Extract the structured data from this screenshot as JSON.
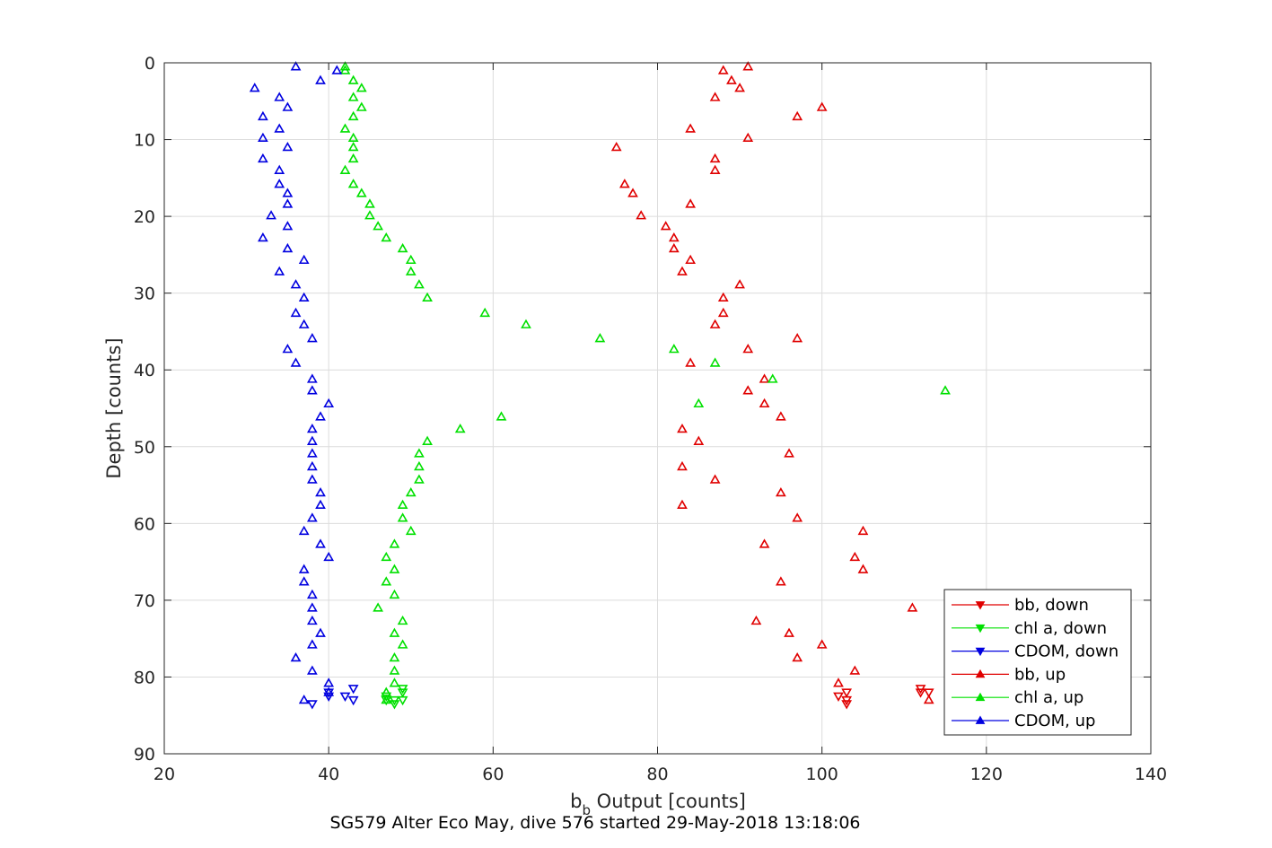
{
  "chart_data": {
    "type": "scatter",
    "xlabel_main": "b",
    "xlabel_sub": "b",
    "xlabel_rest": " Output [counts]",
    "ylabel": "Depth [counts]",
    "caption": "SG579 Alter Eco May, dive 576 started 29-May-2018 13:18:06",
    "xlim": [
      20,
      140
    ],
    "ylim": [
      0,
      90
    ],
    "y_reversed": true,
    "grid": true,
    "legend_position": "bottom-right",
    "xticks": [
      20,
      40,
      60,
      80,
      100,
      120,
      140
    ],
    "yticks": [
      0,
      10,
      20,
      30,
      40,
      50,
      60,
      70,
      80,
      90
    ],
    "series": [
      {
        "name": "bb, down",
        "color": "#e00000",
        "marker": "triangle-down",
        "points": [
          [
            112,
            81.5
          ],
          [
            112,
            82
          ],
          [
            113,
            82
          ],
          [
            103,
            82
          ],
          [
            102,
            82.5
          ],
          [
            103,
            83
          ],
          [
            103,
            83.5
          ]
        ]
      },
      {
        "name": "chl a, down",
        "color": "#00e000",
        "marker": "triangle-down",
        "points": [
          [
            49,
            81.5
          ],
          [
            49,
            82
          ],
          [
            47,
            82.5
          ],
          [
            48,
            83
          ],
          [
            49,
            83
          ],
          [
            47,
            83
          ],
          [
            48,
            83.5
          ]
        ]
      },
      {
        "name": "CDOM, down",
        "color": "#0000e0",
        "marker": "triangle-down",
        "points": [
          [
            43,
            81.5
          ],
          [
            40,
            82
          ],
          [
            40,
            82.5
          ],
          [
            42,
            82.5
          ],
          [
            43,
            83
          ],
          [
            38,
            83.5
          ]
        ]
      },
      {
        "name": "bb, up",
        "color": "#e00000",
        "marker": "triangle-up",
        "points": [
          [
            91,
            0.5
          ],
          [
            88,
            1
          ],
          [
            89,
            2.3
          ],
          [
            90,
            3.3
          ],
          [
            87,
            4.5
          ],
          [
            100,
            5.8
          ],
          [
            97,
            7
          ],
          [
            84,
            8.6
          ],
          [
            91,
            9.8
          ],
          [
            75,
            11
          ],
          [
            87,
            12.5
          ],
          [
            87,
            14
          ],
          [
            76,
            15.8
          ],
          [
            77,
            17
          ],
          [
            84,
            18.4
          ],
          [
            78,
            19.9
          ],
          [
            81,
            21.3
          ],
          [
            82,
            22.8
          ],
          [
            82,
            24.2
          ],
          [
            84,
            25.7
          ],
          [
            83,
            27.2
          ],
          [
            90,
            28.9
          ],
          [
            88,
            30.6
          ],
          [
            88,
            32.6
          ],
          [
            87,
            34.1
          ],
          [
            97,
            35.9
          ],
          [
            91,
            37.3
          ],
          [
            84,
            39.1
          ],
          [
            93,
            41.2
          ],
          [
            91,
            42.7
          ],
          [
            93,
            44.4
          ],
          [
            95,
            46.1
          ],
          [
            83,
            47.7
          ],
          [
            85,
            49.3
          ],
          [
            96,
            50.9
          ],
          [
            83,
            52.6
          ],
          [
            87,
            54.3
          ],
          [
            95,
            56
          ],
          [
            83,
            57.6
          ],
          [
            97,
            59.3
          ],
          [
            105,
            61
          ],
          [
            93,
            62.7
          ],
          [
            104,
            64.4
          ],
          [
            105,
            66
          ],
          [
            95,
            67.6
          ],
          [
            111,
            71
          ],
          [
            92,
            72.7
          ],
          [
            96,
            74.3
          ],
          [
            100,
            75.8
          ],
          [
            97,
            77.5
          ],
          [
            104,
            79.2
          ],
          [
            102,
            80.8
          ],
          [
            113,
            83
          ]
        ]
      },
      {
        "name": "chl a, up",
        "color": "#00e000",
        "marker": "triangle-up",
        "points": [
          [
            42,
            0.5
          ],
          [
            42,
            1
          ],
          [
            43,
            2.3
          ],
          [
            44,
            3.3
          ],
          [
            43,
            4.5
          ],
          [
            44,
            5.8
          ],
          [
            43,
            7
          ],
          [
            42,
            8.6
          ],
          [
            43,
            9.8
          ],
          [
            43,
            11
          ],
          [
            43,
            12.5
          ],
          [
            42,
            14
          ],
          [
            43,
            15.8
          ],
          [
            44,
            17
          ],
          [
            45,
            18.4
          ],
          [
            45,
            19.9
          ],
          [
            46,
            21.3
          ],
          [
            47,
            22.8
          ],
          [
            49,
            24.2
          ],
          [
            50,
            25.7
          ],
          [
            50,
            27.2
          ],
          [
            51,
            28.9
          ],
          [
            52,
            30.6
          ],
          [
            59,
            32.6
          ],
          [
            64,
            34.1
          ],
          [
            73,
            35.9
          ],
          [
            82,
            37.3
          ],
          [
            87,
            39.1
          ],
          [
            94,
            41.2
          ],
          [
            115,
            42.7
          ],
          [
            85,
            44.4
          ],
          [
            61,
            46.1
          ],
          [
            56,
            47.7
          ],
          [
            52,
            49.3
          ],
          [
            51,
            50.9
          ],
          [
            51,
            52.6
          ],
          [
            51,
            54.3
          ],
          [
            50,
            56
          ],
          [
            49,
            57.6
          ],
          [
            49,
            59.3
          ],
          [
            50,
            61
          ],
          [
            48,
            62.7
          ],
          [
            47,
            64.4
          ],
          [
            48,
            66
          ],
          [
            47,
            67.6
          ],
          [
            48,
            69.3
          ],
          [
            46,
            71
          ],
          [
            49,
            72.7
          ],
          [
            48,
            74.3
          ],
          [
            49,
            75.8
          ],
          [
            48,
            77.5
          ],
          [
            48,
            79.2
          ],
          [
            48,
            80.8
          ],
          [
            47,
            82
          ],
          [
            47,
            83
          ]
        ]
      },
      {
        "name": "CDOM, up",
        "color": "#0000e0",
        "marker": "triangle-up",
        "points": [
          [
            36,
            0.5
          ],
          [
            41,
            1
          ],
          [
            39,
            2.3
          ],
          [
            31,
            3.3
          ],
          [
            34,
            4.5
          ],
          [
            35,
            5.8
          ],
          [
            32,
            7
          ],
          [
            34,
            8.6
          ],
          [
            32,
            9.8
          ],
          [
            35,
            11
          ],
          [
            32,
            12.5
          ],
          [
            34,
            14
          ],
          [
            34,
            15.8
          ],
          [
            35,
            17
          ],
          [
            35,
            18.4
          ],
          [
            33,
            19.9
          ],
          [
            35,
            21.3
          ],
          [
            32,
            22.8
          ],
          [
            35,
            24.2
          ],
          [
            37,
            25.7
          ],
          [
            34,
            27.2
          ],
          [
            36,
            28.9
          ],
          [
            37,
            30.6
          ],
          [
            36,
            32.6
          ],
          [
            37,
            34.1
          ],
          [
            38,
            35.9
          ],
          [
            35,
            37.3
          ],
          [
            36,
            39.1
          ],
          [
            38,
            41.2
          ],
          [
            38,
            42.7
          ],
          [
            40,
            44.4
          ],
          [
            39,
            46.1
          ],
          [
            38,
            47.7
          ],
          [
            38,
            49.3
          ],
          [
            38,
            50.9
          ],
          [
            38,
            52.6
          ],
          [
            38,
            54.3
          ],
          [
            39,
            56
          ],
          [
            39,
            57.6
          ],
          [
            38,
            59.3
          ],
          [
            37,
            61
          ],
          [
            39,
            62.7
          ],
          [
            40,
            64.4
          ],
          [
            37,
            66
          ],
          [
            37,
            67.6
          ],
          [
            38,
            69.3
          ],
          [
            38,
            71
          ],
          [
            38,
            72.7
          ],
          [
            39,
            74.3
          ],
          [
            38,
            75.8
          ],
          [
            36,
            77.5
          ],
          [
            38,
            79.2
          ],
          [
            40,
            80.8
          ],
          [
            40,
            82
          ],
          [
            37,
            83
          ]
        ]
      }
    ]
  }
}
